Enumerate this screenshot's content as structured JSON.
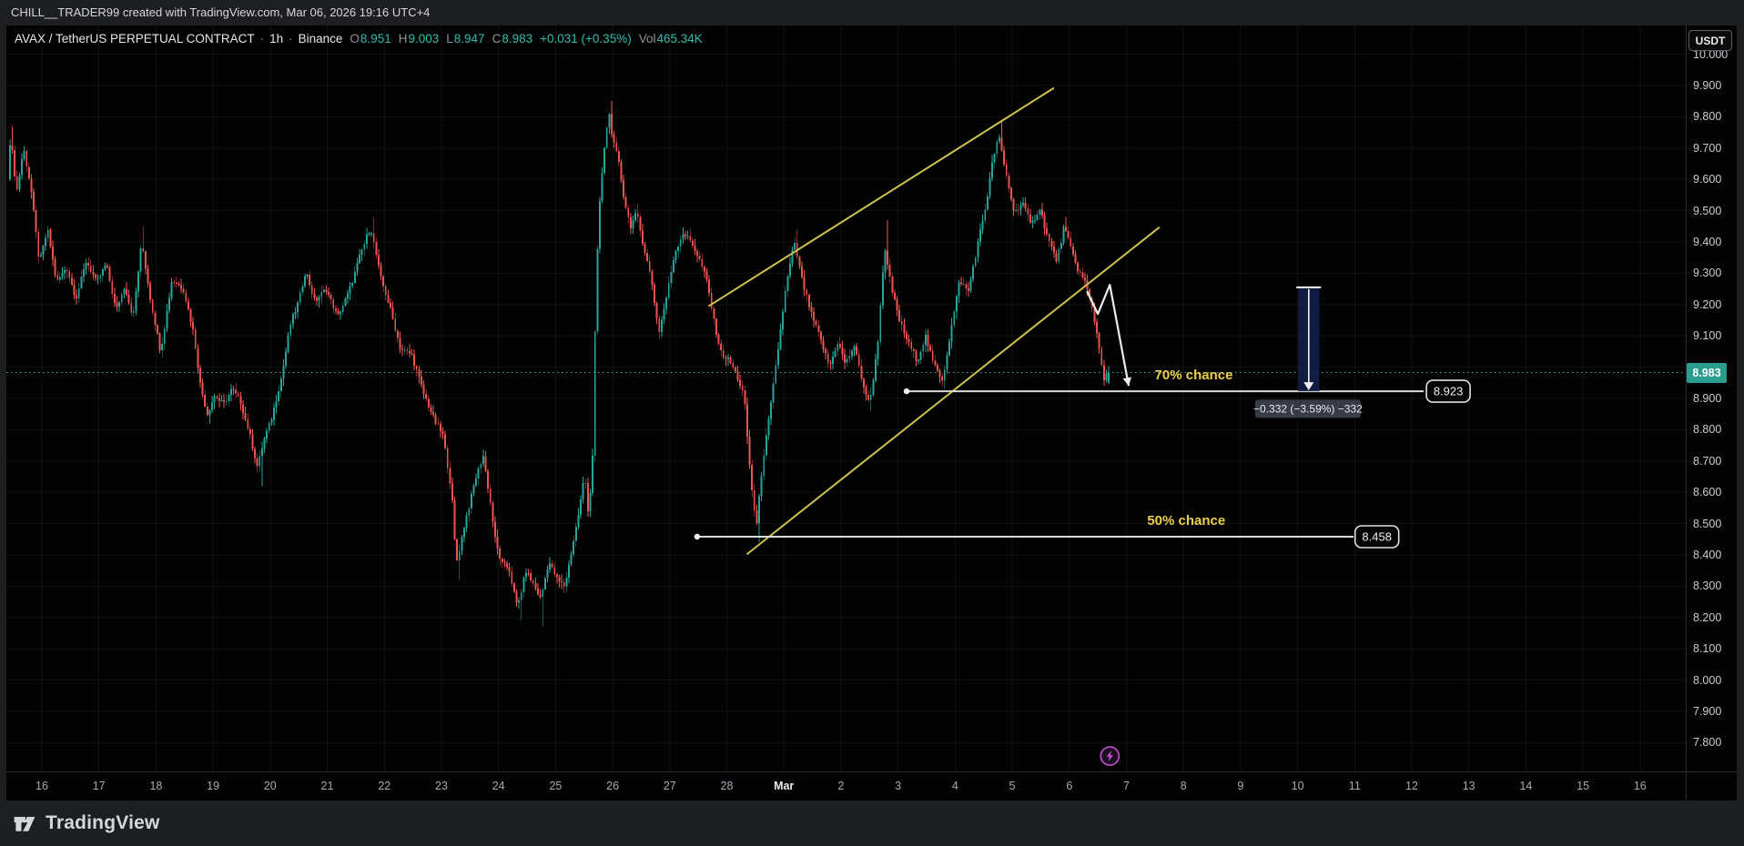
{
  "attribution": "CHILL__TRADER99 created with TradingView.com, Mar 06, 2026 19:16 UTC+4",
  "header": {
    "symbol": "AVAX / TetherUS PERPETUAL CONTRACT",
    "sep": "·",
    "timeframe": "1h",
    "exchange": "Binance",
    "o_label": "O",
    "o": "8.951",
    "h_label": "H",
    "h": "9.003",
    "l_label": "L",
    "l": "8.947",
    "c_label": "C",
    "c": "8.983",
    "change": "+0.031 (+0.35%)",
    "vol_label": "Vol",
    "vol": "465.34K"
  },
  "axis_right": {
    "currency_button": "USDT",
    "last_price_badge": "8.983",
    "labels": [
      "10.000",
      "9.900",
      "9.800",
      "9.700",
      "9.600",
      "9.500",
      "9.400",
      "9.300",
      "9.200",
      "9.100",
      "9.000",
      "8.900",
      "8.800",
      "8.700",
      "8.600",
      "8.500",
      "8.400",
      "8.300",
      "8.200",
      "8.100",
      "8.000",
      "7.900",
      "7.800"
    ]
  },
  "axis_bottom": {
    "labels": [
      {
        "text": "16",
        "day": 16
      },
      {
        "text": "17",
        "day": 17
      },
      {
        "text": "18",
        "day": 18
      },
      {
        "text": "19",
        "day": 19
      },
      {
        "text": "20",
        "day": 20
      },
      {
        "text": "21",
        "day": 21
      },
      {
        "text": "22",
        "day": 22
      },
      {
        "text": "23",
        "day": 23
      },
      {
        "text": "24",
        "day": 24
      },
      {
        "text": "25",
        "day": 25
      },
      {
        "text": "26",
        "day": 26
      },
      {
        "text": "27",
        "day": 27
      },
      {
        "text": "28",
        "day": 28
      },
      {
        "text": "Mar",
        "day": 29,
        "major": true
      },
      {
        "text": "2",
        "day": 30
      },
      {
        "text": "3",
        "day": 31
      },
      {
        "text": "4",
        "day": 32
      },
      {
        "text": "5",
        "day": 33
      },
      {
        "text": "6",
        "day": 34
      },
      {
        "text": "7",
        "day": 35
      },
      {
        "text": "8",
        "day": 36
      },
      {
        "text": "9",
        "day": 37
      },
      {
        "text": "10",
        "day": 38
      },
      {
        "text": "11",
        "day": 39
      },
      {
        "text": "12",
        "day": 40
      },
      {
        "text": "13",
        "day": 41
      },
      {
        "text": "14",
        "day": 42
      },
      {
        "text": "15",
        "day": 43
      },
      {
        "text": "16",
        "day": 44
      }
    ]
  },
  "annotations": {
    "chance_70": "70% chance",
    "chance_50": "50% chance",
    "level_1_price": "8.923",
    "level_2_price": "8.458",
    "measure_label": "−0.332 (−3.59%) −332"
  },
  "footer": {
    "brand": "TradingView"
  },
  "colors": {
    "up": "#26a69a",
    "down": "#ef5350",
    "trendline": "#cfc24d",
    "chance_text": "#ecd04b",
    "level_line": "#d9dadc",
    "badge": "#2a9d8f",
    "marker_purple": "#c44dd0",
    "measure_fill": "#12204a",
    "measure_label_bg": "#373b47",
    "price_line": "#3eb0a4",
    "grid": "rgba(255,255,255,0.055)"
  },
  "chart_data": {
    "type": "candlestick",
    "symbol": "AVAXUSDT.P",
    "interval": "1h",
    "title": "AVAX / TetherUS PERPETUAL CONTRACT · 1h · Binance",
    "visible_range": {
      "day_start": 15.378,
      "day_end": 44.8,
      "price_top": 10.092,
      "price_bottom": 7.708
    },
    "grid": {
      "price_step": 0.1,
      "price_min_line": 7.8,
      "price_max_line": 10.0,
      "day_min_line": 16,
      "day_max_line": 44
    },
    "bars_start": 15.42,
    "bars_end": 34.705,
    "last_bar": {
      "open": 8.951,
      "high": 9.003,
      "low": 8.947,
      "close": 8.983
    },
    "current_price": 8.983,
    "price_path": [
      [
        15.42,
        9.6
      ],
      [
        15.47,
        9.74
      ],
      [
        15.58,
        9.56
      ],
      [
        15.7,
        9.7
      ],
      [
        15.83,
        9.57
      ],
      [
        15.98,
        9.33
      ],
      [
        16.12,
        9.44
      ],
      [
        16.28,
        9.27
      ],
      [
        16.45,
        9.32
      ],
      [
        16.62,
        9.22
      ],
      [
        16.8,
        9.34
      ],
      [
        16.98,
        9.27
      ],
      [
        17.15,
        9.33
      ],
      [
        17.32,
        9.18
      ],
      [
        17.47,
        9.26
      ],
      [
        17.62,
        9.16
      ],
      [
        17.77,
        9.4
      ],
      [
        17.93,
        9.21
      ],
      [
        18.1,
        9.05
      ],
      [
        18.3,
        9.28
      ],
      [
        18.5,
        9.25
      ],
      [
        18.68,
        9.11
      ],
      [
        18.8,
        8.94
      ],
      [
        18.92,
        8.85
      ],
      [
        19.05,
        8.91
      ],
      [
        19.2,
        8.88
      ],
      [
        19.35,
        8.93
      ],
      [
        19.5,
        8.89
      ],
      [
        19.64,
        8.8
      ],
      [
        19.8,
        8.68
      ],
      [
        19.9,
        8.76
      ],
      [
        20.05,
        8.84
      ],
      [
        20.22,
        8.97
      ],
      [
        20.38,
        9.14
      ],
      [
        20.52,
        9.21
      ],
      [
        20.64,
        9.31
      ],
      [
        20.8,
        9.21
      ],
      [
        21.0,
        9.25
      ],
      [
        21.2,
        9.16
      ],
      [
        21.4,
        9.24
      ],
      [
        21.6,
        9.36
      ],
      [
        21.78,
        9.45
      ],
      [
        21.95,
        9.29
      ],
      [
        22.12,
        9.19
      ],
      [
        22.3,
        9.06
      ],
      [
        22.5,
        9.04
      ],
      [
        22.7,
        8.92
      ],
      [
        22.9,
        8.83
      ],
      [
        23.05,
        8.78
      ],
      [
        23.2,
        8.6
      ],
      [
        23.28,
        8.37
      ],
      [
        23.43,
        8.5
      ],
      [
        23.6,
        8.63
      ],
      [
        23.75,
        8.72
      ],
      [
        23.86,
        8.59
      ],
      [
        23.97,
        8.44
      ],
      [
        24.08,
        8.37
      ],
      [
        24.2,
        8.36
      ],
      [
        24.35,
        8.23
      ],
      [
        24.5,
        8.35
      ],
      [
        24.62,
        8.31
      ],
      [
        24.76,
        8.26
      ],
      [
        24.9,
        8.38
      ],
      [
        25.05,
        8.32
      ],
      [
        25.18,
        8.3
      ],
      [
        25.32,
        8.43
      ],
      [
        25.45,
        8.56
      ],
      [
        25.53,
        8.66
      ],
      [
        25.6,
        8.52
      ],
      [
        25.67,
        8.72
      ],
      [
        25.73,
        9.28
      ],
      [
        25.8,
        9.55
      ],
      [
        25.88,
        9.7
      ],
      [
        25.95,
        9.82
      ],
      [
        26.03,
        9.72
      ],
      [
        26.12,
        9.66
      ],
      [
        26.22,
        9.54
      ],
      [
        26.33,
        9.45
      ],
      [
        26.44,
        9.49
      ],
      [
        26.56,
        9.39
      ],
      [
        26.7,
        9.28
      ],
      [
        26.83,
        9.11
      ],
      [
        26.96,
        9.22
      ],
      [
        27.1,
        9.36
      ],
      [
        27.25,
        9.43
      ],
      [
        27.4,
        9.4
      ],
      [
        27.55,
        9.34
      ],
      [
        27.68,
        9.27
      ],
      [
        27.8,
        9.14
      ],
      [
        27.93,
        9.04
      ],
      [
        28.07,
        9.02
      ],
      [
        28.2,
        8.97
      ],
      [
        28.32,
        8.91
      ],
      [
        28.44,
        8.64
      ],
      [
        28.54,
        8.49
      ],
      [
        28.65,
        8.7
      ],
      [
        28.78,
        8.86
      ],
      [
        28.92,
        9.06
      ],
      [
        29.06,
        9.26
      ],
      [
        29.2,
        9.4
      ],
      [
        29.35,
        9.27
      ],
      [
        29.5,
        9.17
      ],
      [
        29.66,
        9.09
      ],
      [
        29.82,
        9.0
      ],
      [
        29.96,
        9.08
      ],
      [
        30.1,
        9.01
      ],
      [
        30.25,
        9.07
      ],
      [
        30.4,
        8.95
      ],
      [
        30.52,
        8.88
      ],
      [
        30.66,
        9.06
      ],
      [
        30.78,
        9.38
      ],
      [
        30.92,
        9.24
      ],
      [
        31.06,
        9.14
      ],
      [
        31.22,
        9.07
      ],
      [
        31.36,
        9.02
      ],
      [
        31.5,
        9.1
      ],
      [
        31.64,
        9.01
      ],
      [
        31.8,
        8.96
      ],
      [
        31.96,
        9.13
      ],
      [
        32.1,
        9.28
      ],
      [
        32.25,
        9.24
      ],
      [
        32.4,
        9.38
      ],
      [
        32.55,
        9.51
      ],
      [
        32.68,
        9.66
      ],
      [
        32.78,
        9.74
      ],
      [
        32.92,
        9.61
      ],
      [
        33.06,
        9.49
      ],
      [
        33.2,
        9.53
      ],
      [
        33.35,
        9.45
      ],
      [
        33.5,
        9.51
      ],
      [
        33.65,
        9.41
      ],
      [
        33.8,
        9.34
      ],
      [
        33.93,
        9.45
      ],
      [
        34.06,
        9.37
      ],
      [
        34.18,
        9.31
      ],
      [
        34.3,
        9.27
      ],
      [
        34.42,
        9.19
      ],
      [
        34.53,
        9.08
      ],
      [
        34.63,
        8.96
      ],
      [
        34.71,
        8.983
      ]
    ],
    "wick_events": [
      [
        15.47,
        9.77
      ],
      [
        17.77,
        9.45
      ],
      [
        18.92,
        8.82
      ],
      [
        19.82,
        8.62
      ],
      [
        21.78,
        9.48
      ],
      [
        23.29,
        8.32
      ],
      [
        24.36,
        8.19
      ],
      [
        24.76,
        8.17
      ],
      [
        25.95,
        9.85
      ],
      [
        26.44,
        9.52
      ],
      [
        28.54,
        8.44
      ],
      [
        29.2,
        9.44
      ],
      [
        30.52,
        8.86
      ],
      [
        30.78,
        9.47
      ],
      [
        31.8,
        8.93
      ],
      [
        32.78,
        9.79
      ],
      [
        33.93,
        9.48
      ],
      [
        34.66,
        8.947
      ]
    ],
    "drawings": {
      "trendline_upper": {
        "d1": 27.69,
        "p1": 9.196,
        "d2": 33.72,
        "p2": 9.891
      },
      "trendline_lower": {
        "d1": 28.36,
        "p1": 8.403,
        "d2": 35.57,
        "p2": 9.446
      },
      "ray_8923": {
        "price": 8.923,
        "d1": 31.15,
        "d2": 40.21,
        "label_day": 40.64
      },
      "ray_8458": {
        "price": 8.458,
        "d1": 27.48,
        "d2": 38.98,
        "label_day": 39.39
      },
      "chance_70_pos": {
        "day": 36.18,
        "price": 8.975
      },
      "chance_50_pos": {
        "day": 36.05,
        "price": 8.51
      },
      "measure": {
        "d1": 38.01,
        "d2": 38.38,
        "price_top": 9.255,
        "price_bottom": 8.923,
        "label_day": 38.18,
        "label_price": 8.867
      },
      "down_arrow": [
        [
          34.31,
          9.243
        ],
        [
          34.5,
          9.17
        ],
        [
          34.71,
          9.263
        ],
        [
          35.04,
          8.94
        ]
      ],
      "lightning_marker": {
        "day": 34.71,
        "price": 7.757
      }
    }
  }
}
